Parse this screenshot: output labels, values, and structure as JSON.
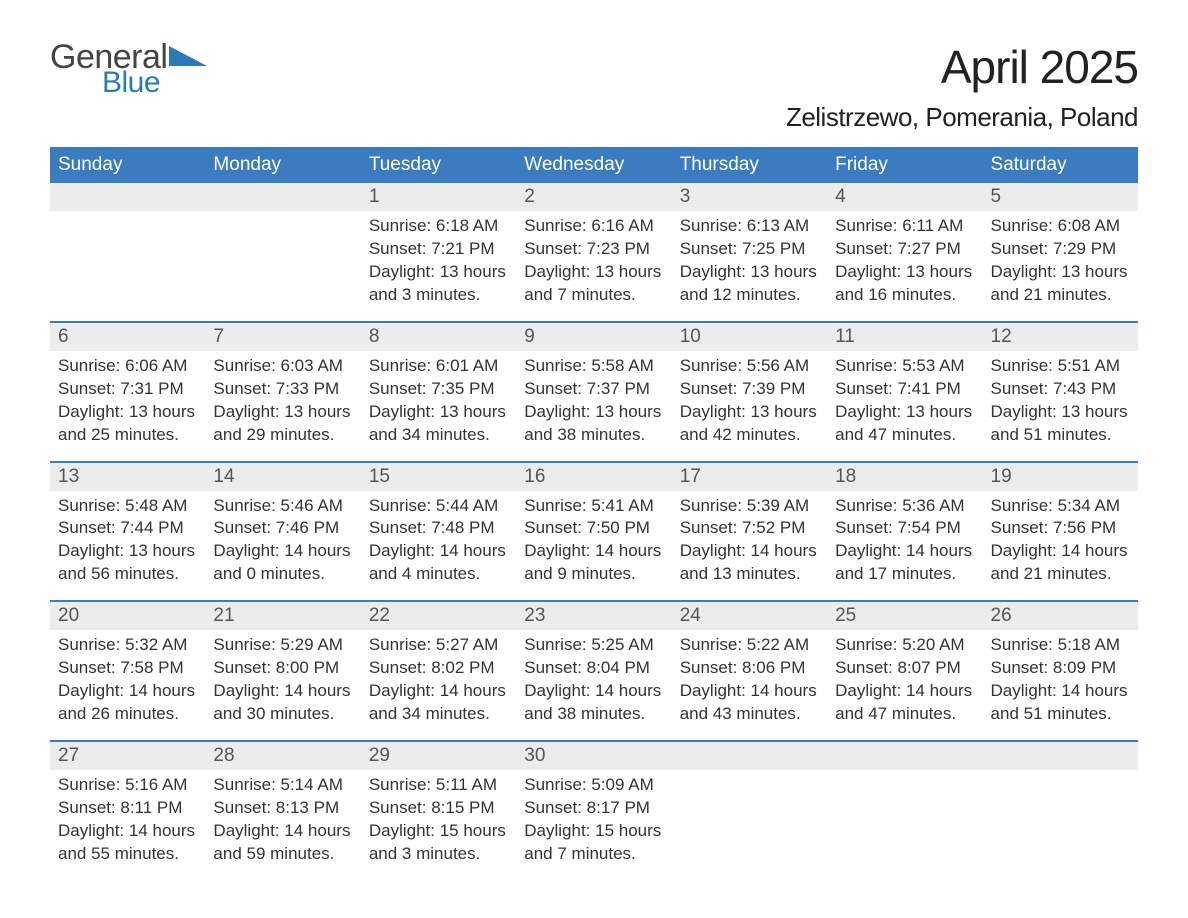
{
  "logo": {
    "general": "General",
    "blue": "Blue"
  },
  "title": "April 2025",
  "location": "Zelistrzewo, Pomerania, Poland",
  "styling": {
    "header_bg": "#3b7bbf",
    "header_text_color": "#ffffff",
    "daynum_bg": "#ececec",
    "daynum_text_color": "#555555",
    "body_text_color": "#333333",
    "week_border_color": "#3b7bbf",
    "page_bg": "#ffffff",
    "logo_general_color": "#444444",
    "logo_blue_color": "#2a7ab8",
    "title_fontsize": 46,
    "location_fontsize": 26,
    "weekday_fontsize": 19,
    "daynum_fontsize": 19,
    "body_fontsize": 17,
    "columns": 7,
    "rows": 5
  },
  "weekdays": [
    "Sunday",
    "Monday",
    "Tuesday",
    "Wednesday",
    "Thursday",
    "Friday",
    "Saturday"
  ],
  "weeks": [
    [
      {
        "num": "",
        "lines": []
      },
      {
        "num": "",
        "lines": []
      },
      {
        "num": "1",
        "lines": [
          "Sunrise: 6:18 AM",
          "Sunset: 7:21 PM",
          "Daylight: 13 hours and 3 minutes."
        ]
      },
      {
        "num": "2",
        "lines": [
          "Sunrise: 6:16 AM",
          "Sunset: 7:23 PM",
          "Daylight: 13 hours and 7 minutes."
        ]
      },
      {
        "num": "3",
        "lines": [
          "Sunrise: 6:13 AM",
          "Sunset: 7:25 PM",
          "Daylight: 13 hours and 12 minutes."
        ]
      },
      {
        "num": "4",
        "lines": [
          "Sunrise: 6:11 AM",
          "Sunset: 7:27 PM",
          "Daylight: 13 hours and 16 minutes."
        ]
      },
      {
        "num": "5",
        "lines": [
          "Sunrise: 6:08 AM",
          "Sunset: 7:29 PM",
          "Daylight: 13 hours and 21 minutes."
        ]
      }
    ],
    [
      {
        "num": "6",
        "lines": [
          "Sunrise: 6:06 AM",
          "Sunset: 7:31 PM",
          "Daylight: 13 hours and 25 minutes."
        ]
      },
      {
        "num": "7",
        "lines": [
          "Sunrise: 6:03 AM",
          "Sunset: 7:33 PM",
          "Daylight: 13 hours and 29 minutes."
        ]
      },
      {
        "num": "8",
        "lines": [
          "Sunrise: 6:01 AM",
          "Sunset: 7:35 PM",
          "Daylight: 13 hours and 34 minutes."
        ]
      },
      {
        "num": "9",
        "lines": [
          "Sunrise: 5:58 AM",
          "Sunset: 7:37 PM",
          "Daylight: 13 hours and 38 minutes."
        ]
      },
      {
        "num": "10",
        "lines": [
          "Sunrise: 5:56 AM",
          "Sunset: 7:39 PM",
          "Daylight: 13 hours and 42 minutes."
        ]
      },
      {
        "num": "11",
        "lines": [
          "Sunrise: 5:53 AM",
          "Sunset: 7:41 PM",
          "Daylight: 13 hours and 47 minutes."
        ]
      },
      {
        "num": "12",
        "lines": [
          "Sunrise: 5:51 AM",
          "Sunset: 7:43 PM",
          "Daylight: 13 hours and 51 minutes."
        ]
      }
    ],
    [
      {
        "num": "13",
        "lines": [
          "Sunrise: 5:48 AM",
          "Sunset: 7:44 PM",
          "Daylight: 13 hours and 56 minutes."
        ]
      },
      {
        "num": "14",
        "lines": [
          "Sunrise: 5:46 AM",
          "Sunset: 7:46 PM",
          "Daylight: 14 hours and 0 minutes."
        ]
      },
      {
        "num": "15",
        "lines": [
          "Sunrise: 5:44 AM",
          "Sunset: 7:48 PM",
          "Daylight: 14 hours and 4 minutes."
        ]
      },
      {
        "num": "16",
        "lines": [
          "Sunrise: 5:41 AM",
          "Sunset: 7:50 PM",
          "Daylight: 14 hours and 9 minutes."
        ]
      },
      {
        "num": "17",
        "lines": [
          "Sunrise: 5:39 AM",
          "Sunset: 7:52 PM",
          "Daylight: 14 hours and 13 minutes."
        ]
      },
      {
        "num": "18",
        "lines": [
          "Sunrise: 5:36 AM",
          "Sunset: 7:54 PM",
          "Daylight: 14 hours and 17 minutes."
        ]
      },
      {
        "num": "19",
        "lines": [
          "Sunrise: 5:34 AM",
          "Sunset: 7:56 PM",
          "Daylight: 14 hours and 21 minutes."
        ]
      }
    ],
    [
      {
        "num": "20",
        "lines": [
          "Sunrise: 5:32 AM",
          "Sunset: 7:58 PM",
          "Daylight: 14 hours and 26 minutes."
        ]
      },
      {
        "num": "21",
        "lines": [
          "Sunrise: 5:29 AM",
          "Sunset: 8:00 PM",
          "Daylight: 14 hours and 30 minutes."
        ]
      },
      {
        "num": "22",
        "lines": [
          "Sunrise: 5:27 AM",
          "Sunset: 8:02 PM",
          "Daylight: 14 hours and 34 minutes."
        ]
      },
      {
        "num": "23",
        "lines": [
          "Sunrise: 5:25 AM",
          "Sunset: 8:04 PM",
          "Daylight: 14 hours and 38 minutes."
        ]
      },
      {
        "num": "24",
        "lines": [
          "Sunrise: 5:22 AM",
          "Sunset: 8:06 PM",
          "Daylight: 14 hours and 43 minutes."
        ]
      },
      {
        "num": "25",
        "lines": [
          "Sunrise: 5:20 AM",
          "Sunset: 8:07 PM",
          "Daylight: 14 hours and 47 minutes."
        ]
      },
      {
        "num": "26",
        "lines": [
          "Sunrise: 5:18 AM",
          "Sunset: 8:09 PM",
          "Daylight: 14 hours and 51 minutes."
        ]
      }
    ],
    [
      {
        "num": "27",
        "lines": [
          "Sunrise: 5:16 AM",
          "Sunset: 8:11 PM",
          "Daylight: 14 hours and 55 minutes."
        ]
      },
      {
        "num": "28",
        "lines": [
          "Sunrise: 5:14 AM",
          "Sunset: 8:13 PM",
          "Daylight: 14 hours and 59 minutes."
        ]
      },
      {
        "num": "29",
        "lines": [
          "Sunrise: 5:11 AM",
          "Sunset: 8:15 PM",
          "Daylight: 15 hours and 3 minutes."
        ]
      },
      {
        "num": "30",
        "lines": [
          "Sunrise: 5:09 AM",
          "Sunset: 8:17 PM",
          "Daylight: 15 hours and 7 minutes."
        ]
      },
      {
        "num": "",
        "lines": []
      },
      {
        "num": "",
        "lines": []
      },
      {
        "num": "",
        "lines": []
      }
    ]
  ]
}
